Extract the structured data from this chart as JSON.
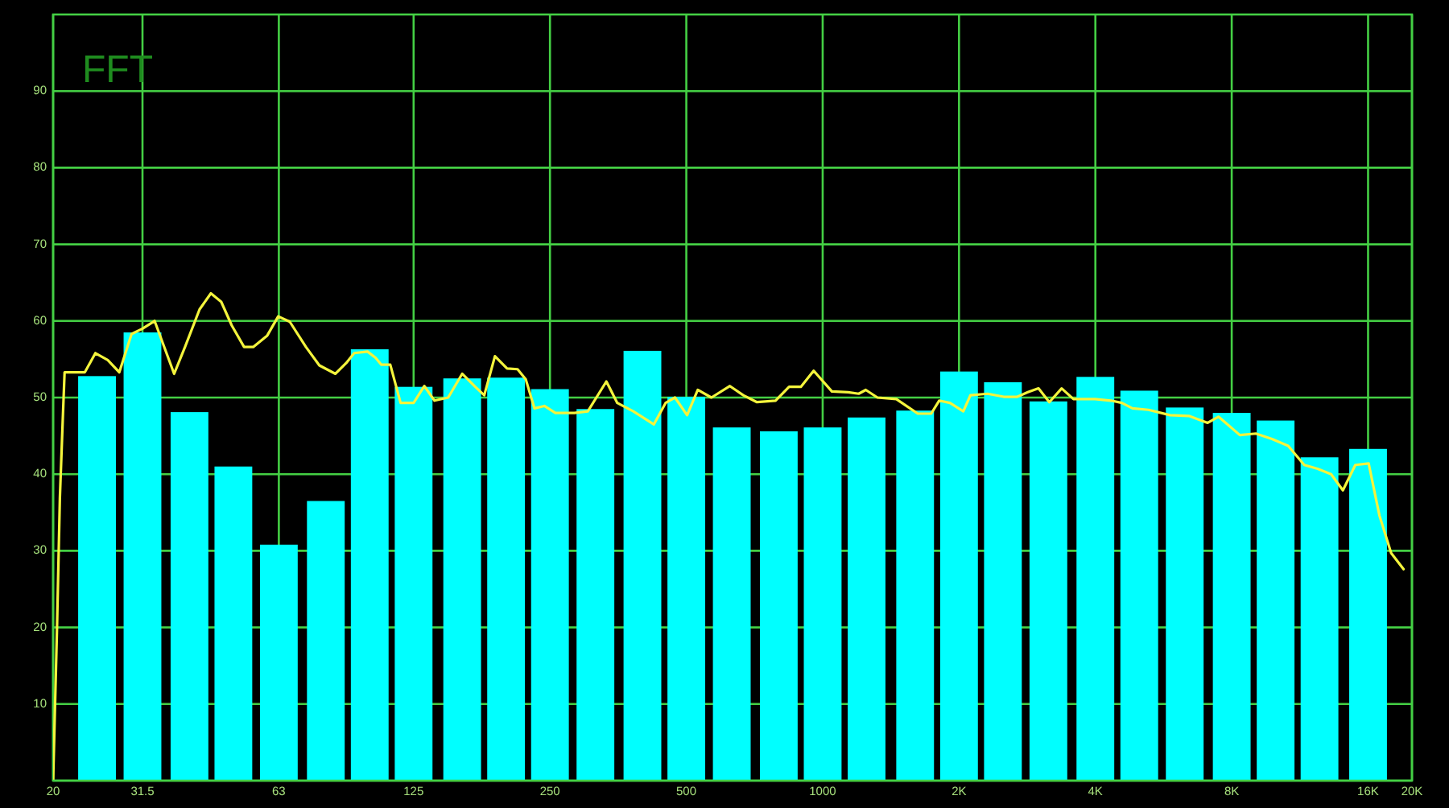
{
  "chart_data": {
    "type": "bar",
    "title": "FFT",
    "log": "x",
    "grid": true,
    "xlim": [
      20,
      20000
    ],
    "xticks": [
      20,
      31.5,
      63,
      125,
      250,
      500,
      1000,
      {
        "value": 2000,
        "label": "2K"
      },
      {
        "value": 4000,
        "label": "4K"
      },
      {
        "value": 8000,
        "label": "8K"
      },
      {
        "value": 16000,
        "label": "16K"
      },
      {
        "value": 20000,
        "label": "20K"
      }
    ],
    "ylim": [
      0,
      100
    ],
    "yticks": [
      10,
      20,
      30,
      40,
      50,
      60,
      70,
      80,
      90
    ],
    "series": [
      {
        "color": "#00ffff",
        "x": [
          25,
          31.5,
          40,
          50,
          63,
          80,
          100,
          125,
          160,
          200,
          250,
          315,
          400,
          500,
          630,
          800,
          1000,
          1250,
          1600,
          2000,
          2500,
          3150,
          4000,
          5000,
          6300,
          8000,
          10000,
          12500,
          16000
        ],
        "values": [
          52.8,
          58.5,
          48.1,
          41.0,
          30.8,
          36.5,
          56.3,
          51.4,
          52.5,
          52.6,
          51.1,
          48.5,
          56.1,
          50.1,
          46.1,
          45.6,
          46.1,
          47.4,
          48.3,
          53.4,
          52.0,
          49.5,
          52.7,
          50.9,
          48.7,
          48.0,
          47.0,
          42.2,
          43.3
        ]
      },
      {
        "type": "line",
        "color": "#f4f43c",
        "x": [
          20,
          20.4,
          20.7,
          21.0,
          21.2,
          23.5,
          24.8,
          26.4,
          28.0,
          29.8,
          31.5,
          33.5,
          37.0,
          39.1,
          42.1,
          44.6,
          47.0,
          49.6,
          52.8,
          55.3,
          59.4,
          62.8,
          66.6,
          72.3,
          77.4,
          84.0,
          88.7,
          92.4,
          98.9,
          103,
          106,
          111,
          117,
          125,
          132,
          139,
          149,
          160,
          171,
          179,
          189,
          201,
          212,
          221,
          231,
          243,
          257,
          283,
          303,
          333,
          352,
          382,
          424,
          450,
          472,
          502,
          530,
          568,
          624,
          668,
          716,
          787,
          843,
          895,
          955,
          1048,
          1138,
          1201,
          1245,
          1321,
          1454,
          1622,
          1736,
          1808,
          1910,
          2044,
          2119,
          2312,
          2510,
          2688,
          2838,
          2996,
          3165,
          3370,
          3578,
          3991,
          4332,
          4577,
          4830,
          5240,
          5848,
          6433,
          7079,
          7479,
          8337,
          9045,
          9820,
          10658,
          11568,
          12380,
          13260,
          14078,
          14996,
          16048,
          16952,
          17992,
          19166
        ],
        "values": [
          0,
          20,
          37,
          47,
          53.3,
          53.3,
          55.8,
          54.9,
          53.3,
          58.3,
          59.0,
          60.0,
          53.1,
          56.6,
          61.5,
          63.6,
          62.5,
          59.4,
          56.6,
          56.6,
          58.1,
          60.6,
          59.9,
          56.6,
          54.2,
          53.1,
          54.5,
          55.8,
          56.0,
          55.2,
          54.3,
          54.3,
          49.3,
          49.3,
          51.5,
          49.6,
          50.0,
          53.1,
          51.4,
          50.3,
          55.4,
          53.8,
          53.7,
          52.4,
          48.6,
          48.9,
          48.0,
          48.0,
          48.2,
          52.1,
          49.3,
          48.2,
          46.5,
          49.3,
          50.0,
          47.7,
          51.0,
          50.0,
          51.5,
          50.3,
          49.4,
          49.6,
          51.4,
          51.4,
          53.5,
          50.8,
          50.7,
          50.5,
          51.0,
          50.0,
          49.8,
          47.9,
          47.9,
          49.6,
          49.3,
          48.2,
          50.3,
          50.5,
          50.1,
          50.1,
          50.7,
          51.2,
          49.4,
          51.2,
          49.8,
          49.8,
          49.6,
          49.3,
          48.6,
          48.4,
          47.7,
          47.6,
          46.7,
          47.5,
          45.1,
          45.3,
          44.6,
          43.7,
          41.2,
          40.7,
          40.0,
          37.9,
          41.2,
          41.4,
          34.6,
          29.7,
          27.6
        ]
      }
    ]
  }
}
